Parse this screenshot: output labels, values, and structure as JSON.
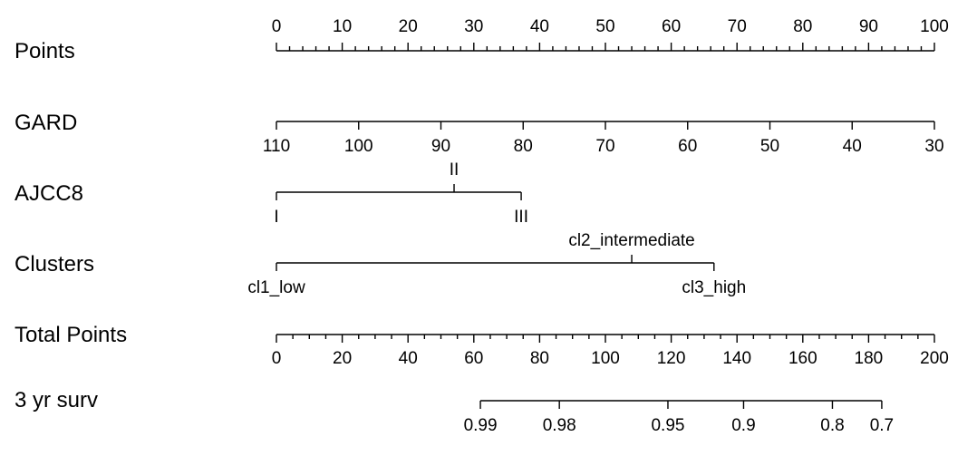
{
  "chart_data": {
    "type": "nomogram",
    "rows": [
      {
        "id": "points",
        "label": "Points",
        "scale": "points",
        "major_ticks": [
          0,
          10,
          20,
          30,
          40,
          50,
          60,
          70,
          80,
          90,
          100
        ],
        "major_labels": [
          "0",
          "10",
          "20",
          "30",
          "40",
          "50",
          "60",
          "70",
          "80",
          "90",
          "100"
        ],
        "minor_step": 2,
        "label_side": "above"
      },
      {
        "id": "gard",
        "label": "GARD",
        "scale": "points",
        "ticks": [
          {
            "label": "110",
            "points": 0
          },
          {
            "label": "100",
            "points": 12.5
          },
          {
            "label": "90",
            "points": 25
          },
          {
            "label": "80",
            "points": 37.5
          },
          {
            "label": "70",
            "points": 50
          },
          {
            "label": "60",
            "points": 62.5
          },
          {
            "label": "50",
            "points": 75
          },
          {
            "label": "40",
            "points": 87.5
          },
          {
            "label": "30",
            "points": 100
          }
        ],
        "label_side": "below"
      },
      {
        "id": "ajcc8",
        "label": "AJCC8",
        "scale": "points",
        "ticks": [
          {
            "label": "I",
            "points": 0,
            "side": "below"
          },
          {
            "label": "II",
            "points": 27,
            "side": "above"
          },
          {
            "label": "III",
            "points": 37.2,
            "side": "below"
          }
        ]
      },
      {
        "id": "clusters",
        "label": "Clusters",
        "scale": "points",
        "ticks": [
          {
            "label": "cl1_low",
            "points": 0,
            "side": "below"
          },
          {
            "label": "cl2_intermediate",
            "points": 54,
            "side": "above"
          },
          {
            "label": "cl3_high",
            "points": 66.5,
            "side": "below"
          }
        ]
      },
      {
        "id": "total_points",
        "label": "Total Points",
        "scale": "total",
        "range": [
          0,
          200
        ],
        "major_ticks": [
          0,
          20,
          40,
          60,
          80,
          100,
          120,
          140,
          160,
          180,
          200
        ],
        "major_labels": [
          "0",
          "20",
          "40",
          "60",
          "80",
          "100",
          "120",
          "140",
          "160",
          "180",
          "200"
        ],
        "minor_step": 5,
        "label_side": "below"
      },
      {
        "id": "surv3yr",
        "label": "3 yr surv",
        "scale": "total",
        "ticks": [
          {
            "label": "0.99",
            "total": 62
          },
          {
            "label": "0.98",
            "total": 86
          },
          {
            "label": "0.95",
            "total": 119
          },
          {
            "label": "0.9",
            "total": 142
          },
          {
            "label": "0.8",
            "total": 169
          },
          {
            "label": "0.7",
            "total": 184
          }
        ],
        "label_side": "below"
      }
    ]
  }
}
